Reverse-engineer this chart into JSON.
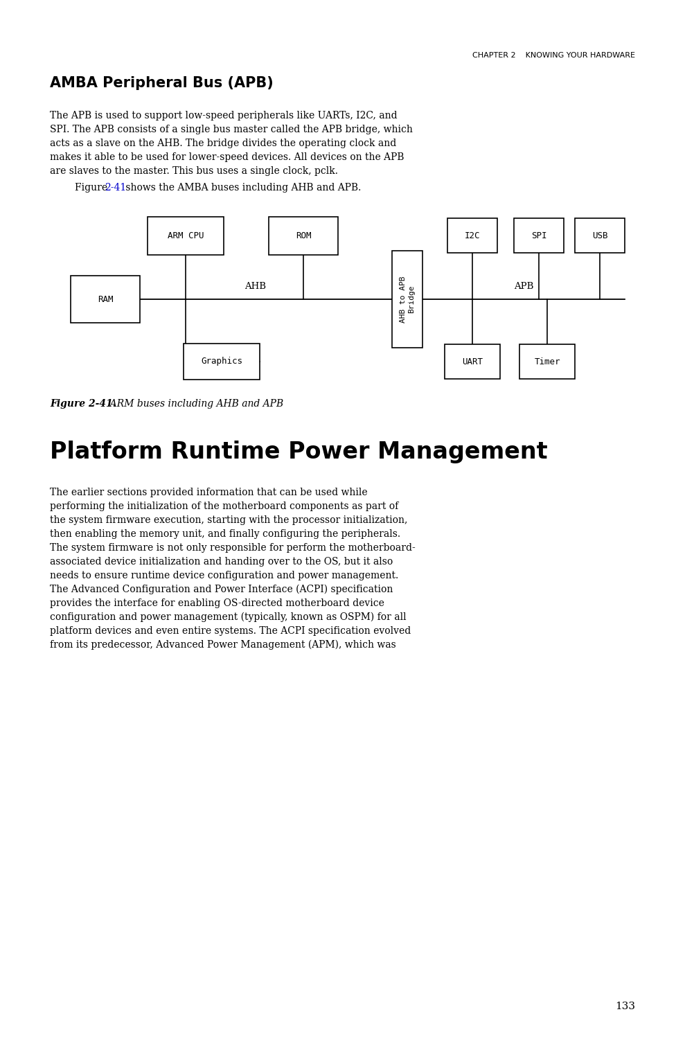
{
  "bg_color": "#ffffff",
  "header_text": "CHAPTER 2    KNOWING YOUR HARDWARE",
  "header_fontsize": 8.0,
  "section1_title": "AMBA Peripheral Bus (APB)",
  "section1_title_fontsize": 15,
  "section1_para_fontsize": 10.0,
  "figure_ref_fontsize": 10.0,
  "figure_caption_fontsize": 10.0,
  "section2_title": "Platform Runtime Power Management",
  "section2_title_fontsize": 24,
  "section2_para_fontsize": 10.0,
  "page_number": "133",
  "page_number_fontsize": 11,
  "text_color": "#000000",
  "link_color": "#0000cc",
  "para1_lines": [
    "The APB is used to support low-speed peripherals like UARTs, I2C, and",
    "SPI. The APB consists of a single bus master called the APB bridge, which",
    "acts as a slave on the AHB. The bridge divides the operating clock and",
    "makes it able to be used for lower-speed devices. All devices on the APB",
    "are slaves to the master. This bus uses a single clock, pclk."
  ],
  "para2_lines": [
    "The earlier sections provided information that can be used while",
    "performing the initialization of the motherboard components as part of",
    "the system firmware execution, starting with the processor initialization,",
    "then enabling the memory unit, and finally configuring the peripherals.",
    "The system firmware is not only responsible for perform the motherboard-",
    "associated device initialization and handing over to the OS, but it also",
    "needs to ensure runtime device configuration and power management.",
    "The Advanced Configuration and Power Interface (ACPI) specification",
    "provides the interface for enabling OS-directed motherboard device",
    "configuration and power management (typically, known as OSPM) for all",
    "platform devices and even entire systems. The ACPI specification evolved",
    "from its predecessor, Advanced Power Management (APM), which was"
  ]
}
